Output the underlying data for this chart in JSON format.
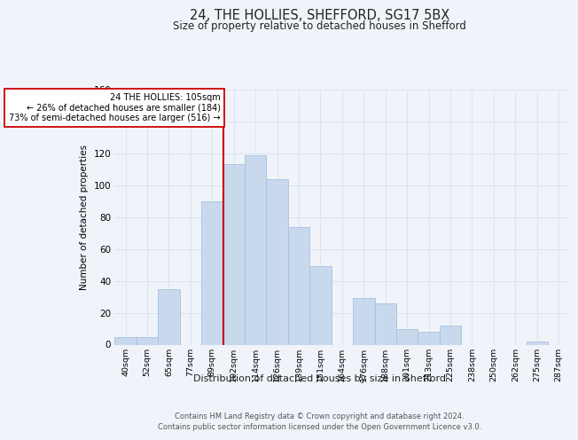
{
  "title": "24, THE HOLLIES, SHEFFORD, SG17 5BX",
  "subtitle": "Size of property relative to detached houses in Shefford",
  "xlabel": "Distribution of detached houses by size in Shefford",
  "ylabel": "Number of detached properties",
  "bin_labels": [
    "40sqm",
    "52sqm",
    "65sqm",
    "77sqm",
    "89sqm",
    "102sqm",
    "114sqm",
    "126sqm",
    "139sqm",
    "151sqm",
    "164sqm",
    "176sqm",
    "188sqm",
    "201sqm",
    "213sqm",
    "225sqm",
    "238sqm",
    "250sqm",
    "262sqm",
    "275sqm",
    "287sqm"
  ],
  "bar_values": [
    5,
    5,
    35,
    0,
    90,
    113,
    119,
    104,
    74,
    49,
    0,
    29,
    26,
    10,
    8,
    12,
    0,
    0,
    0,
    2,
    0
  ],
  "bar_color": "#c8d9ee",
  "bar_edge_color": "#a8c0de",
  "property_line_label": "24 THE HOLLIES: 105sqm",
  "annotation_line1": "← 26% of detached houses are smaller (184)",
  "annotation_line2": "73% of semi-detached houses are larger (516) →",
  "vline_color": "#cc0000",
  "ylim": [
    0,
    160
  ],
  "yticks": [
    0,
    20,
    40,
    60,
    80,
    100,
    120,
    140,
    160
  ],
  "footer_line1": "Contains HM Land Registry data © Crown copyright and database right 2024.",
  "footer_line2": "Contains public sector information licensed under the Open Government Licence v3.0.",
  "bg_color": "#f0f4fa",
  "grid_color": "#dce4ee"
}
